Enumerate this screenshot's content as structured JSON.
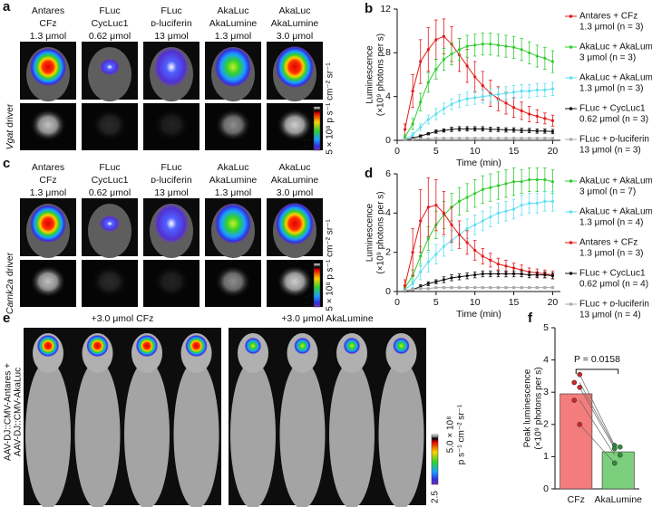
{
  "panel_a": {
    "label": "a",
    "columns": [
      [
        "Antares",
        "CFz",
        "1.3 μmol"
      ],
      [
        "FLuc",
        "CycLuc1",
        "0.62 μmol"
      ],
      [
        "FLuc",
        "ᴅ-luciferin",
        "13 μmol"
      ],
      [
        "AkaLuc",
        "AkaLumine",
        "1.3 μmol"
      ],
      [
        "AkaLuc",
        "AkaLumine",
        "3.0 μmol"
      ]
    ],
    "driver": [
      "Vgat",
      " driver"
    ],
    "scale_max": "5 × 10⁸ p s⁻¹ cm⁻² sr⁻¹",
    "scale_min": "0.1"
  },
  "panel_c": {
    "label": "c",
    "columns": [
      [
        "Antares",
        "CFz",
        "1.3 μmol"
      ],
      [
        "FLuc",
        "CycLuc1",
        "0.62 μmol"
      ],
      [
        "FLuc",
        "ᴅ-luciferin",
        "13 μmol"
      ],
      [
        "AkaLuc",
        "AkaLumine",
        "1.3 μmol"
      ],
      [
        "AkaLuc",
        "AkaLumine",
        "3.0 μmol"
      ]
    ],
    "driver": [
      "Camk2a",
      " driver"
    ],
    "scale_max": "5 × 10⁸ p s⁻¹ cm⁻² sr⁻¹",
    "scale_min": "0.1"
  },
  "panel_e": {
    "label": "e",
    "side_label": [
      "AAV-DJ::CMV-Antares +",
      "AAV-DJ::CMV-AkaLuc"
    ],
    "groups": [
      "+3.0 μmol CFz",
      "+3.0 μmol AkaLumine"
    ],
    "scale_max": [
      "5.0 × 10⁸",
      "p s⁻¹ cm⁻² sr⁻¹"
    ],
    "scale_min": "2.5"
  },
  "chart_data": [
    {
      "type": "line",
      "label": "b",
      "xlabel": "Time (min)",
      "ylabel": [
        "Luminescence",
        "(×10⁹ photons per s)"
      ],
      "x": [
        1,
        2,
        3,
        4,
        5,
        6,
        7,
        8,
        9,
        10,
        11,
        12,
        13,
        14,
        15,
        16,
        17,
        18,
        19,
        20
      ],
      "xlim": [
        0,
        21
      ],
      "xticks": [
        0,
        5,
        10,
        15,
        20
      ],
      "ylim": [
        0,
        12
      ],
      "yticks": [
        0,
        4,
        8,
        12
      ],
      "series": [
        {
          "name": "Antares + CFz",
          "detail": "1.3 μmol (n = 3)",
          "color": "#e41a1c",
          "values": [
            1.0,
            4.5,
            7.2,
            8.3,
            9.2,
            9.5,
            8.8,
            7.8,
            6.8,
            5.8,
            5.0,
            4.3,
            3.8,
            3.4,
            3.0,
            2.7,
            2.4,
            2.2,
            2.0,
            1.8
          ],
          "errors": [
            0.5,
            1.5,
            2,
            2,
            1.8,
            1.6,
            1.6,
            1.5,
            1.5,
            1.4,
            1.3,
            1.2,
            1.1,
            1,
            0.9,
            0.8,
            0.7,
            0.6,
            0.5,
            0.5
          ]
        },
        {
          "name": "AkaLuc + AkaLumine",
          "detail": "3 μmol (n = 3)",
          "color": "#33cc33",
          "values": [
            0.3,
            1.5,
            3.5,
            5.3,
            6.5,
            7.4,
            7.9,
            8.3,
            8.6,
            8.7,
            8.8,
            8.8,
            8.7,
            8.6,
            8.5,
            8.3,
            8.0,
            7.7,
            7.5,
            7.2
          ],
          "errors": [
            0.2,
            0.5,
            0.8,
            0.9,
            0.9,
            1,
            1,
            1,
            1,
            1,
            1,
            1,
            1,
            1,
            1,
            1,
            1,
            1,
            1,
            1
          ]
        },
        {
          "name": "AkaLuc + AkaLumine",
          "detail": "1.3 μmol (n = 3)",
          "color": "#5ee0f0",
          "values": [
            0.1,
            0.5,
            1.2,
            1.9,
            2.4,
            2.9,
            3.3,
            3.6,
            3.8,
            3.9,
            4.0,
            4.1,
            4.2,
            4.3,
            4.4,
            4.5,
            4.5,
            4.6,
            4.6,
            4.7
          ],
          "errors": [
            0.1,
            0.2,
            0.3,
            0.4,
            0.5,
            0.5,
            0.5,
            0.6,
            0.6,
            0.6,
            0.6,
            0.6,
            0.6,
            0.6,
            0.6,
            0.6,
            0.6,
            0.6,
            0.6,
            0.6
          ]
        },
        {
          "name": "FLuc + CycLuc1",
          "detail": "0.62 μmol (n = 3)",
          "color": "#111111",
          "values": [
            0.05,
            0.2,
            0.4,
            0.6,
            0.8,
            0.9,
            1.0,
            1.05,
            1.05,
            1.05,
            1.05,
            1.0,
            1.0,
            0.95,
            0.95,
            0.9,
            0.9,
            0.85,
            0.85,
            0.8
          ],
          "errors": [
            0.02,
            0.05,
            0.1,
            0.1,
            0.15,
            0.15,
            0.2,
            0.2,
            0.2,
            0.2,
            0.2,
            0.2,
            0.2,
            0.2,
            0.2,
            0.2,
            0.2,
            0.2,
            0.2,
            0.2
          ]
        },
        {
          "name": "FLuc + ᴅ-luciferin",
          "detail": "13 μmol (n = 3)",
          "color": "#aaaaaa",
          "values": [
            0.05,
            0.1,
            0.15,
            0.15,
            0.2,
            0.2,
            0.2,
            0.2,
            0.2,
            0.2,
            0.2,
            0.2,
            0.2,
            0.2,
            0.2,
            0.2,
            0.2,
            0.2,
            0.2,
            0.2
          ],
          "errors": [
            0.05,
            0.05,
            0.05,
            0.05,
            0.05,
            0.05,
            0.05,
            0.05,
            0.05,
            0.05,
            0.05,
            0.05,
            0.05,
            0.05,
            0.05,
            0.05,
            0.05,
            0.05,
            0.05,
            0.05
          ]
        }
      ]
    },
    {
      "type": "line",
      "label": "d",
      "xlabel": "Time (min)",
      "ylabel": [
        "Luminescence",
        "(×10⁹ photons per s)"
      ],
      "x": [
        1,
        2,
        3,
        4,
        5,
        6,
        7,
        8,
        9,
        10,
        11,
        12,
        13,
        14,
        15,
        16,
        17,
        18,
        19,
        20
      ],
      "xlim": [
        0,
        21
      ],
      "xticks": [
        0,
        5,
        10,
        15,
        20
      ],
      "ylim": [
        0,
        6
      ],
      "yticks": [
        0,
        2,
        4,
        6
      ],
      "series": [
        {
          "name": "AkaLuc + AkaLumine",
          "detail": "3 μmol (n = 7)",
          "color": "#33cc33",
          "values": [
            0.2,
            0.8,
            1.8,
            2.7,
            3.4,
            3.9,
            4.3,
            4.6,
            4.8,
            5.0,
            5.2,
            5.3,
            5.4,
            5.5,
            5.6,
            5.6,
            5.7,
            5.7,
            5.7,
            5.6
          ],
          "errors": [
            0.1,
            0.3,
            0.5,
            0.6,
            0.7,
            0.7,
            0.7,
            0.7,
            0.7,
            0.7,
            0.7,
            0.7,
            0.7,
            0.7,
            0.7,
            0.6,
            0.6,
            0.6,
            0.6,
            0.6
          ]
        },
        {
          "name": "AkaLuc + AkaLumine",
          "detail": "1.3 μmol (n = 4)",
          "color": "#5ee0f0",
          "values": [
            0.1,
            0.4,
            1.0,
            1.5,
            1.9,
            2.3,
            2.6,
            2.9,
            3.2,
            3.4,
            3.6,
            3.8,
            4.0,
            4.1,
            4.2,
            4.4,
            4.5,
            4.5,
            4.6,
            4.6
          ],
          "errors": [
            0.05,
            0.2,
            0.4,
            0.5,
            0.5,
            0.5,
            0.5,
            0.5,
            0.5,
            0.5,
            0.5,
            0.5,
            0.5,
            0.5,
            0.5,
            0.5,
            0.5,
            0.5,
            0.5,
            0.5
          ]
        },
        {
          "name": "Antares + CFz",
          "detail": "1.3 μmol (n = 3)",
          "color": "#e41a1c",
          "values": [
            0.3,
            2.0,
            3.6,
            4.3,
            4.4,
            4.0,
            3.4,
            2.9,
            2.5,
            2.1,
            1.8,
            1.6,
            1.4,
            1.3,
            1.2,
            1.1,
            1.0,
            0.95,
            0.9,
            0.85
          ],
          "errors": [
            0.3,
            1.2,
            1.6,
            1.5,
            1.3,
            1.1,
            0.9,
            0.7,
            0.6,
            0.5,
            0.4,
            0.35,
            0.3,
            0.3,
            0.25,
            0.25,
            0.2,
            0.2,
            0.2,
            0.2
          ]
        },
        {
          "name": "FLuc + CycLuc1",
          "detail": "0.62 μmol (n = 4)",
          "color": "#111111",
          "values": [
            0.02,
            0.1,
            0.25,
            0.4,
            0.5,
            0.6,
            0.7,
            0.75,
            0.8,
            0.85,
            0.9,
            0.9,
            0.9,
            0.9,
            0.9,
            0.9,
            0.85,
            0.85,
            0.85,
            0.8
          ],
          "errors": [
            0.02,
            0.05,
            0.1,
            0.1,
            0.1,
            0.15,
            0.15,
            0.15,
            0.15,
            0.15,
            0.15,
            0.15,
            0.15,
            0.15,
            0.15,
            0.15,
            0.15,
            0.15,
            0.15,
            0.15
          ]
        },
        {
          "name": "FLuc + ᴅ-luciferin",
          "detail": "13 μmol (n = 4)",
          "color": "#aaaaaa",
          "values": [
            0.05,
            0.1,
            0.15,
            0.15,
            0.2,
            0.2,
            0.2,
            0.2,
            0.2,
            0.2,
            0.2,
            0.2,
            0.2,
            0.2,
            0.2,
            0.2,
            0.2,
            0.2,
            0.2,
            0.2
          ],
          "errors": [
            0.05,
            0.05,
            0.05,
            0.05,
            0.05,
            0.05,
            0.05,
            0.05,
            0.05,
            0.05,
            0.05,
            0.05,
            0.05,
            0.05,
            0.05,
            0.05,
            0.05,
            0.05,
            0.05,
            0.05
          ]
        }
      ]
    },
    {
      "type": "bar",
      "label": "f",
      "ylabel": [
        "Peak luminescence",
        "(×10⁹ photons per s)"
      ],
      "categories": [
        "CFz",
        "AkaLumine"
      ],
      "values": [
        2.95,
        1.15
      ],
      "colors": [
        "#f47c7c",
        "#7ccf7c"
      ],
      "points": [
        [
          3.55,
          3.3,
          3.15,
          2.75,
          2.0
        ],
        [
          1.35,
          1.3,
          1.25,
          1.05,
          0.8
        ]
      ],
      "point_colors": [
        "#c62828",
        "#2e8b3e"
      ],
      "ylim": [
        0,
        5
      ],
      "yticks": [
        0,
        1,
        2,
        3,
        4,
        5
      ],
      "annotation": "P = 0.0158"
    }
  ]
}
